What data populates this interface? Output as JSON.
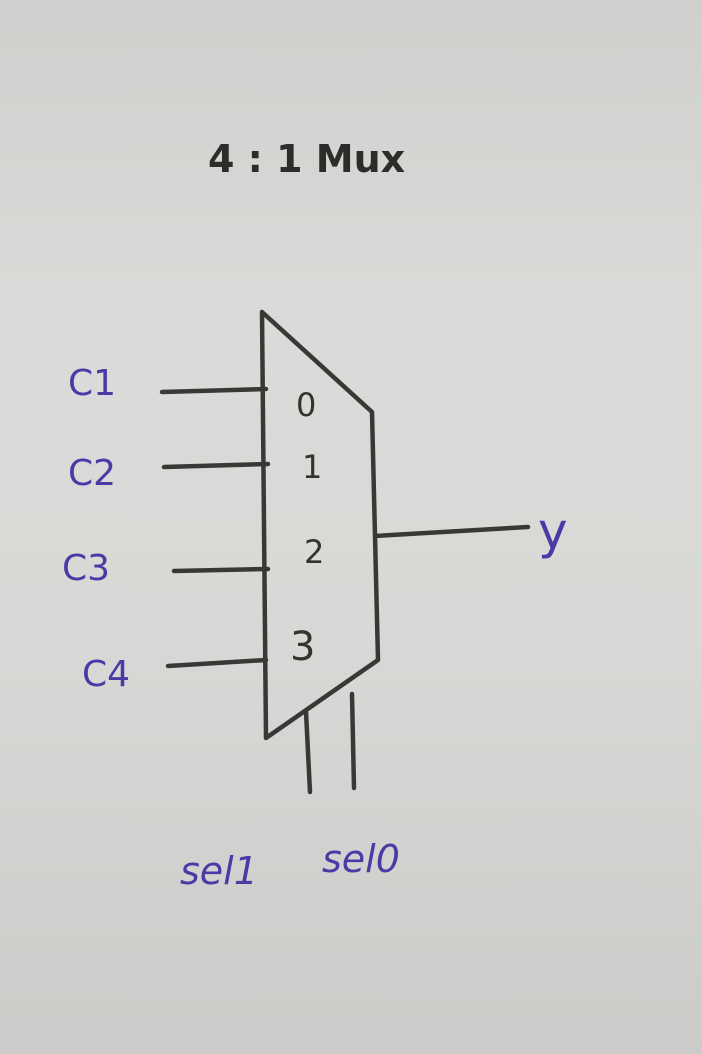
{
  "title": "4 : 1 Mux",
  "inputs": [
    {
      "label": "C1",
      "port": "0"
    },
    {
      "label": "C2",
      "port": "1"
    },
    {
      "label": "C3",
      "port": "2"
    },
    {
      "label": "C4",
      "port": "3"
    }
  ],
  "output": {
    "label": "y"
  },
  "selects": [
    "sel1",
    "sel0"
  ],
  "colors": {
    "ink": "#3a3836",
    "label_ink": "#4a3aa6",
    "paper": "#d9dad8"
  }
}
